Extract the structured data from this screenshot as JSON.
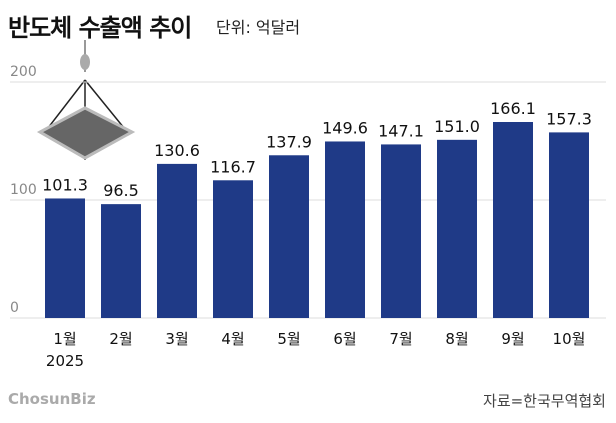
{
  "header": {
    "title": "반도체 수출액 추이",
    "unit": "단위: 억달러"
  },
  "footer": {
    "logo": "ChosunBiz",
    "source": "자료=한국무역협회"
  },
  "chart_data": {
    "type": "bar",
    "categories": [
      "1월",
      "2월",
      "3월",
      "4월",
      "5월",
      "6월",
      "7월",
      "8월",
      "9월",
      "10월"
    ],
    "year_label": "2025",
    "values": [
      101.3,
      96.5,
      130.6,
      116.7,
      137.9,
      149.6,
      147.1,
      151.0,
      166.1,
      157.3
    ],
    "value_labels": [
      "101.3",
      "96.5",
      "130.6",
      "116.7",
      "137.9",
      "149.6",
      "147.1",
      "151.0",
      "166.1",
      "157.3"
    ],
    "yticks": [
      0,
      100,
      200
    ],
    "ylim": [
      0,
      200
    ],
    "grid": true,
    "bar_color": "#1f3a87"
  }
}
